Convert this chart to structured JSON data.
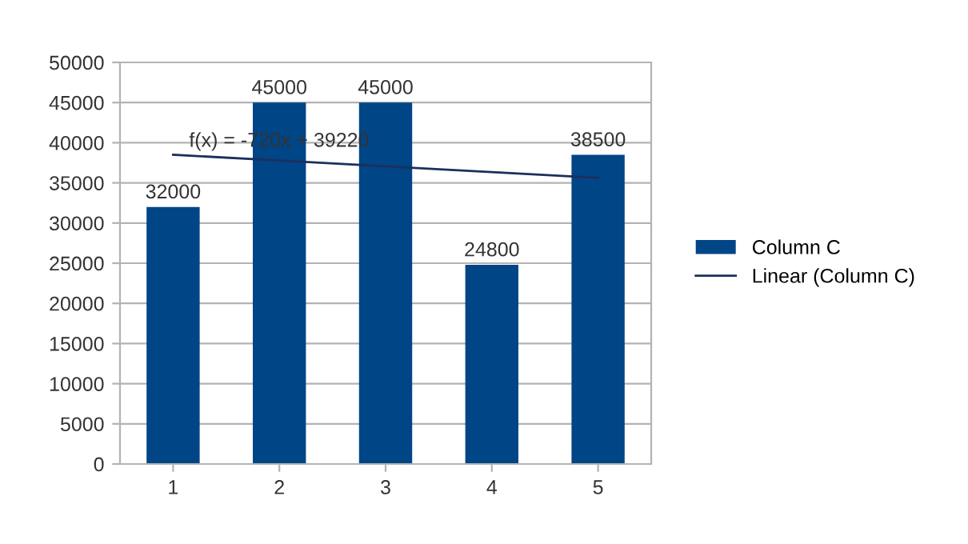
{
  "chart_data": {
    "type": "bar",
    "categories": [
      "1",
      "2",
      "3",
      "4",
      "5"
    ],
    "series": [
      {
        "name": "Column C",
        "color": "#004586",
        "values": [
          32000,
          45000,
          45000,
          24800,
          38500
        ],
        "value_labels": [
          "32000",
          "45000",
          "45000",
          "24800",
          "38500"
        ]
      },
      {
        "name": "Linear (Column C)",
        "type": "line",
        "color": "#1c2f5e",
        "values": [
          38500,
          37780,
          37060,
          36340,
          35620
        ]
      }
    ],
    "ylim": [
      0,
      50000
    ],
    "yticks": [
      0,
      5000,
      10000,
      15000,
      20000,
      25000,
      30000,
      35000,
      40000,
      45000,
      50000
    ],
    "grid": "y",
    "legend": "right",
    "annotations": [
      "f(x) = -720x + 39220"
    ]
  }
}
